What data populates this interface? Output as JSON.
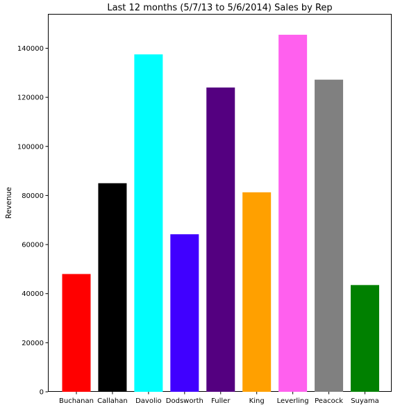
{
  "chart_data": {
    "type": "bar",
    "title": "Last 12 months (5/7/13 to 5/6/2014) Sales by Rep",
    "xlabel": "",
    "ylabel": "Revenue",
    "ylim": [
      0,
      154000
    ],
    "yticks": [
      0,
      20000,
      40000,
      60000,
      80000,
      100000,
      120000,
      140000
    ],
    "categories": [
      "Buchanan",
      "Callahan",
      "Davolio",
      "Dodsworth",
      "Fuller",
      "King",
      "Leverling",
      "Peacock",
      "Suyama"
    ],
    "values": [
      48000,
      85000,
      137500,
      64200,
      124000,
      81300,
      145500,
      127200,
      43500
    ],
    "colors": [
      "#ff0000",
      "#000000",
      "#00ffff",
      "#4000ff",
      "#540080",
      "#ffa000",
      "#ff60ee",
      "#808080",
      "#008000"
    ],
    "grid": false,
    "legend": "none"
  }
}
